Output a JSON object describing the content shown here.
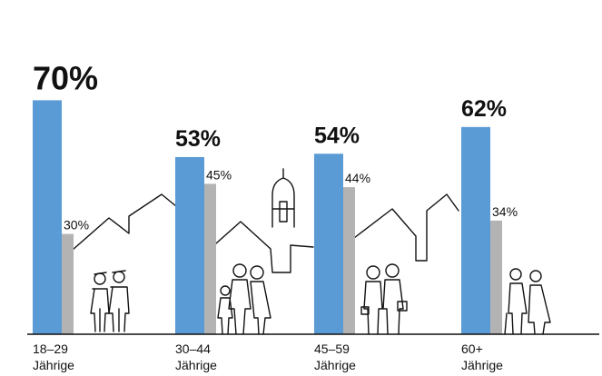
{
  "chart_data": {
    "type": "bar",
    "categories": [
      {
        "line1": "18–29",
        "line2": "Jährige"
      },
      {
        "line1": "30–44",
        "line2": "Jährige"
      },
      {
        "line1": "45–59",
        "line2": "Jährige"
      },
      {
        "line1": "60+",
        "line2": "Jährige"
      }
    ],
    "series": [
      {
        "values": [
          70,
          53,
          54,
          62
        ],
        "labels": [
          "70%",
          "53%",
          "54%",
          "62%"
        ],
        "color": "#5b9bd5"
      },
      {
        "values": [
          30,
          45,
          44,
          34
        ],
        "labels": [
          "30%",
          "45%",
          "44%",
          "34%"
        ],
        "color": "#b3b3b3"
      }
    ],
    "ylim": [
      0,
      100
    ],
    "grid": false,
    "legend": "none",
    "background_illustration": "town-skyline-and-people-line-drawing"
  }
}
